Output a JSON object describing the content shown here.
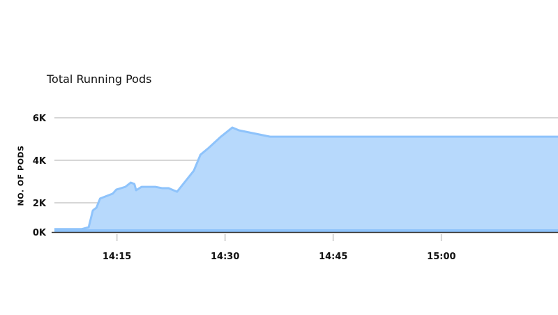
{
  "chart_data": {
    "type": "area",
    "title": "Total Running Pods",
    "xlabel": "",
    "ylabel": "NO. OF PODS",
    "y_ticks": [
      {
        "value": 0,
        "label": "0K"
      },
      {
        "value": 2000,
        "label": "2K"
      },
      {
        "value": 4000,
        "label": "4K"
      },
      {
        "value": 6000,
        "label": "6K"
      }
    ],
    "x_ticks": [
      "14:15",
      "14:30",
      "14:45",
      "15:00"
    ],
    "xlim": [
      "14:06:20",
      "15:16:10"
    ],
    "ylim": [
      0,
      6000
    ],
    "grid": true,
    "legend": "none",
    "colors": {
      "fill": "#b7d9fc",
      "line": "#8ec3fb",
      "grid": "#d6d6d6",
      "axis": "#333333"
    },
    "series": [
      {
        "x": [
          "14:06:20",
          "14:10:05",
          "14:11:05",
          "14:11:40",
          "14:12:10",
          "14:12:40",
          "14:14:25",
          "14:14:55",
          "14:16:10",
          "14:16:55",
          "14:17:25",
          "14:17:40",
          "14:18:25",
          "14:20:20",
          "14:21:15",
          "14:22:10",
          "14:23:20",
          "14:25:40",
          "14:26:35",
          "14:27:45",
          "14:29:25",
          "14:31:00",
          "14:31:55",
          "14:36:15",
          "15:16:10"
        ],
        "y": [
          200,
          200,
          330,
          1480,
          1670,
          2200,
          2430,
          2620,
          2750,
          2950,
          2890,
          2590,
          2750,
          2750,
          2690,
          2690,
          2520,
          3510,
          4260,
          4590,
          5110,
          5540,
          5410,
          5110,
          5110
        ]
      }
    ]
  }
}
